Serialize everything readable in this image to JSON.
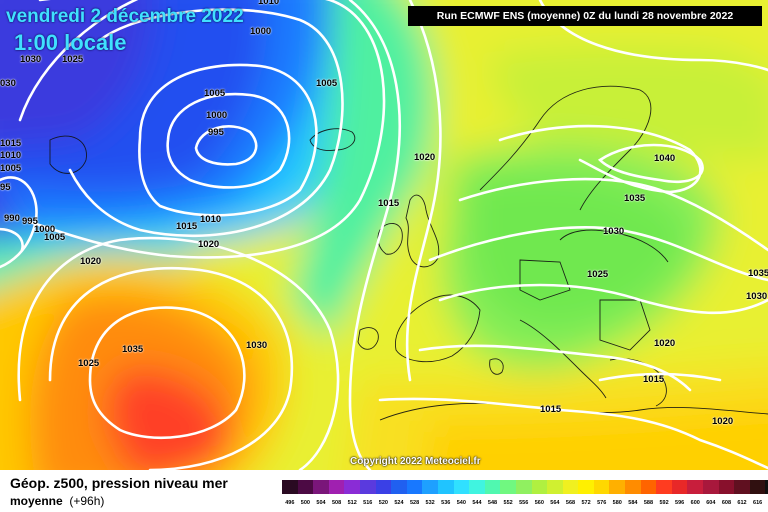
{
  "header": {
    "date": "vendredi 2 décembre 2022",
    "hour": "1:00 locale",
    "run": "Run ECMWF ENS (moyenne) 0Z du lundi 28 novembre 2022"
  },
  "copyright": "Copyright 2022 Meteociel.fr",
  "caption": {
    "title": "Géop. z500, pression niveau mer",
    "subtitle_bold": "moyenne",
    "subtitle": "(+96h)"
  },
  "isobar_labels": {
    "l1010a": "1010",
    "l1000a": "1000",
    "l1030a": "1030",
    "l1025a": "1025",
    "l1030b": "030",
    "l1005a": "1005",
    "l1005b": "1005",
    "l1000b": "1000",
    "l995a": "995",
    "l1015a": "1015",
    "l1010b": "1010",
    "l1005c": "1005",
    "l995b": "95",
    "l990": "990",
    "l995c": "995",
    "l1000c": "1000",
    "l1005d": "1005",
    "l1020a": "1020",
    "l1015b": "1015",
    "l1010c": "1010",
    "l1015c": "1015",
    "l1020b": "1020",
    "l1020c": "1020",
    "l1035a": "1035",
    "l1030c": "1030",
    "l1025b": "1025",
    "l1040": "1040",
    "l1035b": "1035",
    "l1030d": "1030",
    "l1025c": "1025",
    "l1035c": "1035",
    "l1030e": "1030",
    "l1020d": "1020",
    "l1015d": "1015",
    "l1015e": "1015",
    "l1020e": "1020"
  },
  "legend": {
    "colors": [
      "#2a0a22",
      "#4c0a44",
      "#7a167a",
      "#a020b0",
      "#8a2cd6",
      "#5a3ade",
      "#3a40e6",
      "#2060f0",
      "#1878ff",
      "#1ea0ff",
      "#20c4ff",
      "#30e0ff",
      "#40f4e0",
      "#50f8b0",
      "#70f880",
      "#90f060",
      "#b0f040",
      "#d0f030",
      "#f0f020",
      "#fff000",
      "#ffd800",
      "#ffb000",
      "#ff8c00",
      "#ff6400",
      "#ff3c20",
      "#e82828",
      "#c81e3c",
      "#a8183c",
      "#88102c",
      "#601020",
      "#301010",
      "#101010",
      "#000000"
    ],
    "labels": [
      "496",
      "500",
      "504",
      "508",
      "512",
      "516",
      "520",
      "524",
      "528",
      "532",
      "536",
      "540",
      "544",
      "548",
      "552",
      "556",
      "560",
      "564",
      "568",
      "572",
      "576",
      "580",
      "584",
      "588",
      "592",
      "596",
      "600",
      "604",
      "608",
      "612",
      "616"
    ]
  }
}
